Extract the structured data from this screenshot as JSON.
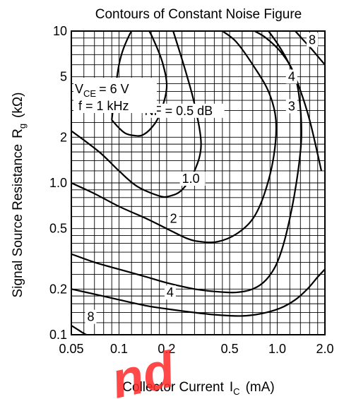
{
  "chart_data": {
    "type": "line",
    "title": "Contours of Constant Noise Figure",
    "xlabel": "Collector Current",
    "xlabel_symbol": "I",
    "xlabel_sub": "C",
    "xlabel_unit": "(mA)",
    "ylabel": "Signal Source Resistance",
    "ylabel_symbol": "R",
    "ylabel_sub": "g",
    "ylabel_unit": "(kΩ)",
    "x_scale": "log",
    "y_scale": "log",
    "xlim": [
      0.05,
      2.0
    ],
    "ylim": [
      0.1,
      10
    ],
    "grid": true,
    "x_ticks": [
      {
        "value": 0.05,
        "label": "0.05"
      },
      {
        "value": 0.1,
        "label": "0.1"
      },
      {
        "value": 0.2,
        "label": "0.2"
      },
      {
        "value": 0.5,
        "label": "0.5"
      },
      {
        "value": 1.0,
        "label": "1.0"
      },
      {
        "value": 2.0,
        "label": "2.0"
      }
    ],
    "y_ticks": [
      {
        "value": 0.1,
        "label": "0.1"
      },
      {
        "value": 0.2,
        "label": "0.2"
      },
      {
        "value": 0.5,
        "label": "0.5"
      },
      {
        "value": 1.0,
        "label": "1.0"
      },
      {
        "value": 2,
        "label": "2"
      },
      {
        "value": 5,
        "label": "5"
      },
      {
        "value": 10,
        "label": "10"
      }
    ],
    "conditions": {
      "vce_symbol": "V",
      "vce_sub": "CE",
      "vce_value": "= 6 V",
      "freq": "f = 1 kHz"
    },
    "series": [
      {
        "name": "NF = 0.5 dB",
        "label_at": {
          "x": 0.145,
          "y": 2.8
        },
        "x": [
          0.09,
          0.1,
          0.11,
          0.125,
          0.14,
          0.16,
          0.18,
          0.2,
          0.19,
          0.17,
          0.15,
          0.13,
          0.115,
          0.1,
          0.09
        ],
        "y": [
          2.6,
          2.3,
          2.12,
          2.05,
          2.06,
          2.3,
          2.8,
          4.2,
          6.0,
          8.2,
          10.5,
          10.8,
          9.2,
          6.0,
          2.6
        ]
      },
      {
        "name": "1.0",
        "label_at": {
          "x": 0.25,
          "y": 1.0
        },
        "x": [
          0.05,
          0.075,
          0.1,
          0.13,
          0.18,
          0.21,
          0.25,
          0.3,
          0.33,
          0.3,
          0.26,
          0.22
        ],
        "y": [
          2.2,
          1.6,
          1.2,
          0.95,
          0.82,
          0.82,
          0.9,
          1.2,
          1.8,
          3.3,
          5.7,
          10
        ]
      },
      {
        "name": "2",
        "label_at": {
          "x": 0.21,
          "y": 0.545
        },
        "x": [
          0.05,
          0.07,
          0.1,
          0.15,
          0.2,
          0.27,
          0.33,
          0.42,
          0.55,
          0.7,
          0.83,
          0.95,
          0.98,
          0.88,
          0.7,
          0.55,
          0.45
        ],
        "y": [
          1.0,
          0.85,
          0.7,
          0.58,
          0.5,
          0.43,
          0.41,
          0.41,
          0.46,
          0.58,
          0.85,
          1.5,
          2.6,
          4.0,
          6.0,
          8.5,
          10
        ]
      },
      {
        "name": "3",
        "label_at": {
          "x": 1.17,
          "y": 3.0
        },
        "x": [
          0.05,
          0.07,
          0.1,
          0.15,
          0.2,
          0.3,
          0.42,
          0.55,
          0.7,
          0.85,
          1.0,
          1.15,
          1.32,
          1.42,
          1.37,
          1.25,
          1.05,
          0.85,
          0.72
        ],
        "y": [
          0.34,
          0.3,
          0.27,
          0.24,
          0.22,
          0.2,
          0.192,
          0.19,
          0.2,
          0.23,
          0.3,
          0.48,
          1.0,
          2.0,
          3.8,
          5.5,
          7.3,
          9.0,
          10
        ]
      },
      {
        "name": "4",
        "label_at": {
          "x": 1.17,
          "y": 4.7
        },
        "x": [
          0.05,
          0.07,
          0.1,
          0.15,
          0.2,
          0.3,
          0.42,
          0.6,
          0.8,
          1.05,
          1.3,
          1.55,
          1.8,
          2.0
        ],
        "y": [
          0.2,
          0.185,
          0.17,
          0.155,
          0.148,
          0.14,
          0.135,
          0.133,
          0.138,
          0.15,
          0.17,
          0.2,
          0.24,
          0.27
        ]
      },
      {
        "name": "4",
        "label_at": {
          "x": 0.2,
          "y": 0.178
        },
        "x": [
          1.9,
          1.6,
          1.35,
          1.15,
          1.0,
          0.88
        ],
        "y": [
          1.2,
          2.6,
          4.5,
          6.5,
          8.3,
          10
        ]
      },
      {
        "name": "8",
        "label_at": {
          "x": 1.58,
          "y": 8.2
        },
        "x": [
          1.3,
          1.45,
          1.65,
          1.85,
          2.0
        ],
        "y": [
          10,
          8.8,
          7.6,
          6.6,
          6.0
        ]
      },
      {
        "name": "8",
        "label_at": {
          "x": 0.063,
          "y": 0.123
        },
        "x": [
          0.05,
          0.055,
          0.06,
          0.065
        ],
        "y": [
          0.115,
          0.108,
          0.102,
          0.098
        ]
      }
    ]
  },
  "watermark": "nd"
}
